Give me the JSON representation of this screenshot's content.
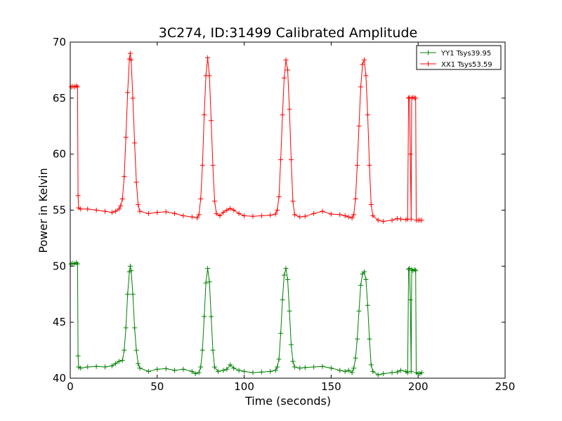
{
  "chart_data": {
    "type": "line",
    "title": "3C274, ID:31499 Calibrated Amplitude",
    "xlabel": "Time (seconds)",
    "ylabel": "Power in Kelvin",
    "xlim": [
      0,
      250
    ],
    "ylim": [
      40,
      70
    ],
    "xticks": [
      "0",
      "50",
      "100",
      "150",
      "200",
      "250"
    ],
    "yticks": [
      "40",
      "45",
      "50",
      "55",
      "60",
      "65",
      "70"
    ],
    "grid": false,
    "legend_position": "top-right",
    "series": [
      {
        "name": "YY1 Tsys39.95",
        "color": "#008000",
        "marker": "+",
        "points": [
          [
            0.5,
            50.2
          ],
          [
            1.5,
            50.25
          ],
          [
            2.5,
            50.2
          ],
          [
            3.5,
            50.3
          ],
          [
            4.2,
            50.2
          ],
          [
            4.5,
            42.0
          ],
          [
            4.8,
            41.0
          ],
          [
            6,
            40.9
          ],
          [
            10,
            41.0
          ],
          [
            15,
            41.05
          ],
          [
            20,
            41.0
          ],
          [
            24,
            41.1
          ],
          [
            26,
            41.3
          ],
          [
            28,
            41.5
          ],
          [
            30,
            41.6
          ],
          [
            31,
            42.5
          ],
          [
            32,
            44.5
          ],
          [
            33,
            47.5
          ],
          [
            34,
            49.5
          ],
          [
            34.5,
            50.0
          ],
          [
            35,
            49.6
          ],
          [
            36,
            47.5
          ],
          [
            37,
            44.5
          ],
          [
            38,
            42.5
          ],
          [
            39,
            41.3
          ],
          [
            40,
            40.9
          ],
          [
            45,
            40.6
          ],
          [
            50,
            40.8
          ],
          [
            55,
            40.85
          ],
          [
            60,
            40.7
          ],
          [
            65,
            40.8
          ],
          [
            70,
            40.6
          ],
          [
            72,
            40.4
          ],
          [
            74,
            40.5
          ],
          [
            75,
            41.0
          ],
          [
            76,
            42.5
          ],
          [
            77,
            45.5
          ],
          [
            78,
            48.5
          ],
          [
            79,
            49.8
          ],
          [
            80,
            48.6
          ],
          [
            81,
            45.5
          ],
          [
            82,
            42.5
          ],
          [
            83,
            41.0
          ],
          [
            85,
            40.6
          ],
          [
            88,
            40.7
          ],
          [
            90,
            40.8
          ],
          [
            92,
            41.2
          ],
          [
            94,
            40.9
          ],
          [
            97,
            40.7
          ],
          [
            100,
            40.6
          ],
          [
            105,
            40.5
          ],
          [
            110,
            40.55
          ],
          [
            115,
            40.6
          ],
          [
            118,
            40.7
          ],
          [
            119,
            41.0
          ],
          [
            120,
            41.7
          ],
          [
            121,
            44.0
          ],
          [
            122,
            47.0
          ],
          [
            123,
            49.2
          ],
          [
            124,
            49.8
          ],
          [
            125,
            48.8
          ],
          [
            126,
            46.0
          ],
          [
            127,
            43.0
          ],
          [
            128,
            41.5
          ],
          [
            129,
            41.0
          ],
          [
            132,
            40.9
          ],
          [
            135,
            40.95
          ],
          [
            140,
            41.0
          ],
          [
            145,
            41.05
          ],
          [
            150,
            40.9
          ],
          [
            155,
            40.7
          ],
          [
            158,
            40.6
          ],
          [
            160,
            40.7
          ],
          [
            162,
            40.5
          ],
          [
            163,
            40.9
          ],
          [
            164,
            41.8
          ],
          [
            165,
            43.5
          ],
          [
            166,
            46.0
          ],
          [
            167,
            48.3
          ],
          [
            168,
            49.3
          ],
          [
            169,
            49.5
          ],
          [
            170,
            48.8
          ],
          [
            171,
            46.5
          ],
          [
            172,
            43.5
          ],
          [
            173,
            41.2
          ],
          [
            174,
            40.6
          ],
          [
            177,
            40.3
          ],
          [
            180,
            40.4
          ],
          [
            185,
            40.5
          ],
          [
            188,
            40.55
          ],
          [
            190,
            40.7
          ],
          [
            193,
            40.6
          ],
          [
            194,
            40.5
          ],
          [
            194.5,
            49.7
          ],
          [
            195,
            49.8
          ],
          [
            195.5,
            47.0
          ],
          [
            196,
            40.6
          ],
          [
            196.3,
            49.7
          ],
          [
            197,
            49.6
          ],
          [
            198,
            49.7
          ],
          [
            198.6,
            49.6
          ],
          [
            198.9,
            40.5
          ],
          [
            200,
            40.4
          ],
          [
            201,
            40.4
          ],
          [
            202,
            40.5
          ]
        ]
      },
      {
        "name": "XX1 Tsys53.59",
        "color": "#ff0000",
        "marker": "+",
        "points": [
          [
            0.5,
            66.0
          ],
          [
            1.5,
            66.05
          ],
          [
            2.5,
            66.0
          ],
          [
            3.5,
            66.1
          ],
          [
            4.2,
            66.0
          ],
          [
            4.5,
            56.3
          ],
          [
            4.8,
            55.2
          ],
          [
            6,
            55.1
          ],
          [
            10,
            55.1
          ],
          [
            15,
            55.0
          ],
          [
            20,
            54.9
          ],
          [
            24,
            54.8
          ],
          [
            26,
            54.9
          ],
          [
            28,
            55.1
          ],
          [
            29,
            55.4
          ],
          [
            30,
            56.0
          ],
          [
            31,
            58.0
          ],
          [
            32,
            61.5
          ],
          [
            33,
            65.5
          ],
          [
            34,
            68.5
          ],
          [
            34.5,
            69.0
          ],
          [
            35,
            68.4
          ],
          [
            36,
            65.0
          ],
          [
            37,
            61.0
          ],
          [
            38,
            57.5
          ],
          [
            39,
            55.5
          ],
          [
            40,
            54.9
          ],
          [
            45,
            54.7
          ],
          [
            50,
            54.8
          ],
          [
            55,
            54.85
          ],
          [
            60,
            54.7
          ],
          [
            65,
            54.5
          ],
          [
            70,
            54.4
          ],
          [
            73,
            54.3
          ],
          [
            74,
            54.6
          ],
          [
            75,
            56.0
          ],
          [
            76,
            59.0
          ],
          [
            77,
            63.5
          ],
          [
            78,
            67.0
          ],
          [
            79,
            68.6
          ],
          [
            80,
            67.0
          ],
          [
            81,
            63.0
          ],
          [
            82,
            59.0
          ],
          [
            83,
            55.8
          ],
          [
            84,
            54.7
          ],
          [
            86,
            54.5
          ],
          [
            88,
            54.8
          ],
          [
            90,
            55.0
          ],
          [
            92,
            55.15
          ],
          [
            94,
            55.0
          ],
          [
            97,
            54.7
          ],
          [
            100,
            54.5
          ],
          [
            105,
            54.45
          ],
          [
            110,
            54.5
          ],
          [
            115,
            54.55
          ],
          [
            118,
            54.65
          ],
          [
            119,
            55.0
          ],
          [
            120,
            56.2
          ],
          [
            121,
            59.5
          ],
          [
            122,
            63.5
          ],
          [
            123,
            66.8
          ],
          [
            124,
            68.4
          ],
          [
            125,
            67.5
          ],
          [
            126,
            64.0
          ],
          [
            127,
            59.5
          ],
          [
            128,
            55.8
          ],
          [
            129,
            54.6
          ],
          [
            132,
            54.4
          ],
          [
            135,
            54.45
          ],
          [
            140,
            54.7
          ],
          [
            145,
            54.9
          ],
          [
            150,
            54.65
          ],
          [
            155,
            54.6
          ],
          [
            158,
            54.5
          ],
          [
            160,
            54.4
          ],
          [
            162,
            54.3
          ],
          [
            163,
            54.6
          ],
          [
            164,
            56.0
          ],
          [
            165,
            59.0
          ],
          [
            166,
            62.5
          ],
          [
            167,
            66.0
          ],
          [
            168,
            68.0
          ],
          [
            169,
            68.4
          ],
          [
            170,
            67.0
          ],
          [
            171,
            63.5
          ],
          [
            172,
            59.0
          ],
          [
            173,
            55.5
          ],
          [
            174,
            54.5
          ],
          [
            177,
            54.1
          ],
          [
            180,
            54.0
          ],
          [
            185,
            54.1
          ],
          [
            188,
            54.25
          ],
          [
            190,
            54.2
          ],
          [
            193,
            54.15
          ],
          [
            194,
            54.2
          ],
          [
            194.5,
            65.0
          ],
          [
            195,
            65.05
          ],
          [
            195.5,
            60.0
          ],
          [
            196,
            54.2
          ],
          [
            196.3,
            65.0
          ],
          [
            197,
            65.05
          ],
          [
            198,
            65.0
          ],
          [
            198.6,
            65.0
          ],
          [
            198.9,
            54.1
          ],
          [
            200,
            54.1
          ],
          [
            201,
            54.1
          ],
          [
            202,
            54.1
          ]
        ]
      }
    ]
  }
}
